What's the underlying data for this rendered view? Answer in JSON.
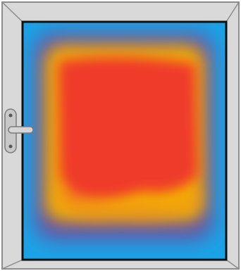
{
  "diagram": {
    "subject": "window",
    "colors": {
      "frame_face": "#d9d9d9",
      "frame_outline": "#8c8c8c",
      "glass_edge": "#111111",
      "glass_cold": "#1aa3e6",
      "glass_cool": "#6b4fa3",
      "glass_warm": "#f4b400",
      "glass_hot": "#ef3b2c",
      "handle_metal": "#c8c8c8"
    },
    "icons": {
      "handle": "window-handle-icon"
    }
  }
}
